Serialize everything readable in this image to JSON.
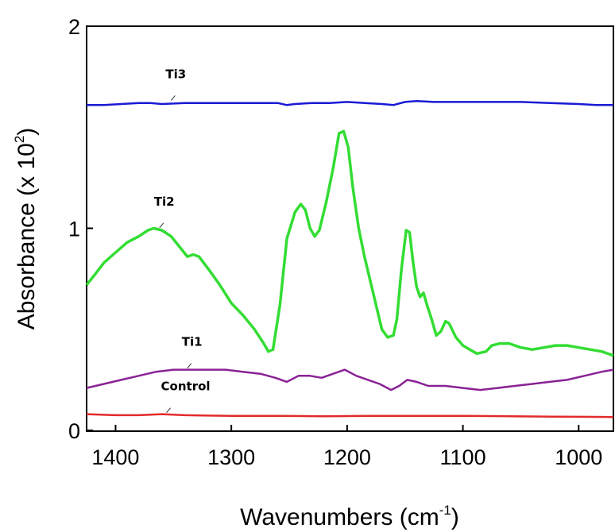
{
  "chart_data": {
    "type": "line",
    "title": "",
    "xlabel": "Wavenumbers (cm-1)",
    "xlabel_base": "Wavenumbers (cm",
    "xlabel_sup": "-1",
    "xlabel_end": ")",
    "ylabel": "Absorbance (x 102)",
    "ylabel_base": "Absorbance (x 10",
    "ylabel_sup": "2",
    "ylabel_end": ")",
    "xlim": [
      1425,
      970
    ],
    "ylim": [
      0,
      2
    ],
    "x_reversed": true,
    "x_ticks": [
      1400,
      1300,
      1200,
      1100,
      1000
    ],
    "x_tick_labels": [
      "1400",
      "1300",
      "1200",
      "1100",
      "1000"
    ],
    "y_ticks": [
      0,
      1,
      2
    ],
    "y_tick_labels": [
      "0",
      "1",
      "2"
    ],
    "grid": false,
    "legend": "none",
    "series": [
      {
        "name": "Ti3",
        "color": "#1a1ad6",
        "points": [
          [
            1425,
            1.61
          ],
          [
            1410,
            1.61
          ],
          [
            1395,
            1.615
          ],
          [
            1380,
            1.62
          ],
          [
            1370,
            1.62
          ],
          [
            1360,
            1.615
          ],
          [
            1340,
            1.62
          ],
          [
            1320,
            1.62
          ],
          [
            1300,
            1.62
          ],
          [
            1280,
            1.62
          ],
          [
            1260,
            1.62
          ],
          [
            1252,
            1.61
          ],
          [
            1245,
            1.615
          ],
          [
            1230,
            1.62
          ],
          [
            1215,
            1.62
          ],
          [
            1200,
            1.625
          ],
          [
            1185,
            1.62
          ],
          [
            1170,
            1.615
          ],
          [
            1160,
            1.61
          ],
          [
            1150,
            1.625
          ],
          [
            1140,
            1.63
          ],
          [
            1125,
            1.625
          ],
          [
            1100,
            1.625
          ],
          [
            1075,
            1.625
          ],
          [
            1050,
            1.625
          ],
          [
            1025,
            1.62
          ],
          [
            1000,
            1.615
          ],
          [
            985,
            1.61
          ],
          [
            970,
            1.61
          ]
        ]
      },
      {
        "name": "Ti2",
        "color": "#33dd33",
        "points": [
          [
            1425,
            0.72
          ],
          [
            1418,
            0.77
          ],
          [
            1410,
            0.83
          ],
          [
            1400,
            0.88
          ],
          [
            1390,
            0.93
          ],
          [
            1380,
            0.96
          ],
          [
            1372,
            0.99
          ],
          [
            1367,
            1.0
          ],
          [
            1360,
            0.99
          ],
          [
            1352,
            0.96
          ],
          [
            1345,
            0.91
          ],
          [
            1338,
            0.86
          ],
          [
            1333,
            0.87
          ],
          [
            1328,
            0.86
          ],
          [
            1320,
            0.8
          ],
          [
            1310,
            0.72
          ],
          [
            1300,
            0.63
          ],
          [
            1290,
            0.57
          ],
          [
            1280,
            0.5
          ],
          [
            1272,
            0.43
          ],
          [
            1268,
            0.39
          ],
          [
            1264,
            0.4
          ],
          [
            1258,
            0.62
          ],
          [
            1252,
            0.95
          ],
          [
            1245,
            1.08
          ],
          [
            1240,
            1.12
          ],
          [
            1236,
            1.09
          ],
          [
            1232,
            1.0
          ],
          [
            1228,
            0.96
          ],
          [
            1224,
            0.99
          ],
          [
            1218,
            1.13
          ],
          [
            1212,
            1.3
          ],
          [
            1207,
            1.47
          ],
          [
            1203,
            1.48
          ],
          [
            1199,
            1.4
          ],
          [
            1195,
            1.2
          ],
          [
            1190,
            1.0
          ],
          [
            1185,
            0.86
          ],
          [
            1180,
            0.74
          ],
          [
            1175,
            0.62
          ],
          [
            1170,
            0.5
          ],
          [
            1165,
            0.46
          ],
          [
            1160,
            0.47
          ],
          [
            1157,
            0.55
          ],
          [
            1153,
            0.8
          ],
          [
            1149,
            0.99
          ],
          [
            1146,
            0.98
          ],
          [
            1143,
            0.83
          ],
          [
            1140,
            0.71
          ],
          [
            1137,
            0.66
          ],
          [
            1134,
            0.68
          ],
          [
            1131,
            0.62
          ],
          [
            1127,
            0.55
          ],
          [
            1123,
            0.47
          ],
          [
            1119,
            0.49
          ],
          [
            1115,
            0.54
          ],
          [
            1112,
            0.53
          ],
          [
            1106,
            0.46
          ],
          [
            1100,
            0.42
          ],
          [
            1094,
            0.4
          ],
          [
            1088,
            0.38
          ],
          [
            1080,
            0.39
          ],
          [
            1075,
            0.42
          ],
          [
            1068,
            0.43
          ],
          [
            1060,
            0.43
          ],
          [
            1050,
            0.41
          ],
          [
            1040,
            0.4
          ],
          [
            1030,
            0.41
          ],
          [
            1020,
            0.42
          ],
          [
            1010,
            0.42
          ],
          [
            1000,
            0.41
          ],
          [
            990,
            0.4
          ],
          [
            980,
            0.39
          ],
          [
            970,
            0.37
          ]
        ]
      },
      {
        "name": "Ti1",
        "color": "#8a2295",
        "points": [
          [
            1425,
            0.21
          ],
          [
            1410,
            0.23
          ],
          [
            1395,
            0.25
          ],
          [
            1380,
            0.27
          ],
          [
            1365,
            0.29
          ],
          [
            1350,
            0.3
          ],
          [
            1335,
            0.3
          ],
          [
            1320,
            0.3
          ],
          [
            1305,
            0.3
          ],
          [
            1290,
            0.29
          ],
          [
            1275,
            0.28
          ],
          [
            1262,
            0.26
          ],
          [
            1252,
            0.24
          ],
          [
            1242,
            0.27
          ],
          [
            1232,
            0.27
          ],
          [
            1222,
            0.26
          ],
          [
            1212,
            0.28
          ],
          [
            1202,
            0.3
          ],
          [
            1192,
            0.27
          ],
          [
            1182,
            0.25
          ],
          [
            1172,
            0.23
          ],
          [
            1162,
            0.2
          ],
          [
            1155,
            0.22
          ],
          [
            1148,
            0.25
          ],
          [
            1140,
            0.24
          ],
          [
            1130,
            0.22
          ],
          [
            1115,
            0.22
          ],
          [
            1100,
            0.21
          ],
          [
            1085,
            0.2
          ],
          [
            1070,
            0.21
          ],
          [
            1055,
            0.22
          ],
          [
            1040,
            0.23
          ],
          [
            1025,
            0.24
          ],
          [
            1010,
            0.25
          ],
          [
            995,
            0.27
          ],
          [
            980,
            0.29
          ],
          [
            970,
            0.3
          ]
        ]
      },
      {
        "name": "Control",
        "color": "#e32a2a",
        "points": [
          [
            1425,
            0.08
          ],
          [
            1400,
            0.075
          ],
          [
            1380,
            0.075
          ],
          [
            1360,
            0.08
          ],
          [
            1340,
            0.075
          ],
          [
            1300,
            0.072
          ],
          [
            1260,
            0.072
          ],
          [
            1220,
            0.07
          ],
          [
            1180,
            0.072
          ],
          [
            1140,
            0.072
          ],
          [
            1100,
            0.072
          ],
          [
            1060,
            0.07
          ],
          [
            1020,
            0.068
          ],
          [
            1000,
            0.067
          ],
          [
            970,
            0.066
          ]
        ]
      }
    ],
    "annotations": [
      {
        "text": "Ti3",
        "series": "Ti3",
        "x": 1352,
        "y": 1.625
      },
      {
        "text": "Ti2",
        "series": "Ti2",
        "x": 1362,
        "y": 0.995
      },
      {
        "text": "Ti1",
        "series": "Ti1",
        "x": 1338,
        "y": 0.3
      },
      {
        "text": "Control",
        "series": "Control",
        "x": 1356,
        "y": 0.08
      }
    ]
  }
}
